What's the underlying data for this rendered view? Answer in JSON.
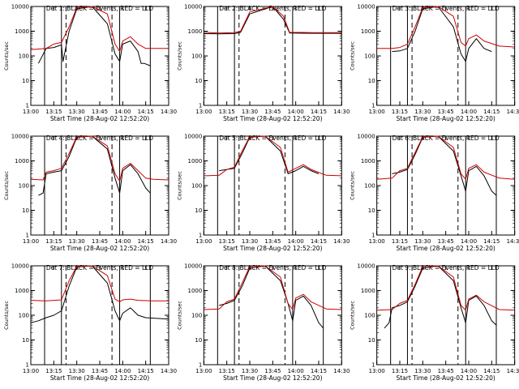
{
  "window": {
    "width": 640,
    "height": 480
  },
  "chart_data": [
    {
      "type": "line",
      "title": "Det 1: BLACK = Events, RED = LLD",
      "xlabel": "Start Time (28-Aug-02 12:52:20)",
      "ylabel": "Counts/sec",
      "x_ticks": [
        "13:00",
        "13:15",
        "13:30",
        "13:45",
        "14:00",
        "14:15",
        "14:30"
      ],
      "y_ticks": [
        "1",
        "10",
        "100",
        "1000",
        "10000"
      ],
      "ylim": [
        1,
        10000
      ],
      "yscale": "log",
      "solid_vlines": [
        "13:09",
        "13:20",
        "13:58",
        "14:18"
      ],
      "dashed_vlines": [
        "13:23",
        "13:53"
      ],
      "series": [
        {
          "name": "Events",
          "color": "#000000",
          "x": [
            "13:05",
            "13:10",
            "13:15",
            "13:20",
            "13:21",
            "13:25",
            "13:30",
            "13:40",
            "13:50",
            "13:55",
            "13:58",
            "14:00",
            "14:05",
            "14:10",
            "14:12",
            "14:14",
            "14:18"
          ],
          "y": [
            50,
            200,
            220,
            280,
            60,
            1000,
            8000,
            10000,
            2000,
            120,
            60,
            300,
            400,
            150,
            50,
            50,
            40
          ]
        },
        {
          "name": "LLD",
          "color": "#cc0000",
          "x": [
            "13:00",
            "13:10",
            "13:15",
            "13:20",
            "13:25",
            "13:30",
            "13:40",
            "13:50",
            "13:55",
            "13:58",
            "14:00",
            "14:05",
            "14:10",
            "14:15",
            "14:20",
            "14:30"
          ],
          "y": [
            180,
            200,
            300,
            350,
            1500,
            9000,
            10000,
            5000,
            300,
            150,
            400,
            600,
            300,
            200,
            200,
            200
          ]
        }
      ]
    },
    {
      "type": "line",
      "title": "Det 2: BLACK = Events, RED = LLD",
      "xlabel": "Start Time (28-Aug-02 12:52:20)",
      "ylabel": "Counts/sec",
      "x_ticks": [
        "13:00",
        "13:15",
        "13:30",
        "13:45",
        "14:00",
        "14:15",
        "14:30"
      ],
      "y_ticks": [
        "1",
        "10",
        "100",
        "1000",
        "10000"
      ],
      "ylim": [
        1,
        10000
      ],
      "yscale": "log",
      "solid_vlines": [
        "13:09",
        "13:20",
        "13:58",
        "14:18"
      ],
      "dashed_vlines": [
        "13:23",
        "13:53"
      ],
      "series": [
        {
          "name": "Events",
          "color": "#000000",
          "x": [
            "13:00",
            "13:10",
            "13:20",
            "13:24",
            "13:30",
            "13:45",
            "13:52",
            "13:56",
            "14:10",
            "14:30"
          ],
          "y": [
            800,
            780,
            800,
            900,
            5000,
            10000,
            3000,
            850,
            820,
            820
          ]
        },
        {
          "name": "LLD",
          "color": "#cc0000",
          "x": [
            "13:00",
            "13:10",
            "13:20",
            "13:24",
            "13:30",
            "13:45",
            "13:52",
            "13:56",
            "14:10",
            "14:30"
          ],
          "y": [
            900,
            850,
            880,
            1000,
            6000,
            10000,
            4000,
            900,
            880,
            880
          ]
        }
      ]
    },
    {
      "type": "line",
      "title": "Det 3: BLACK = Events, RED = LLD",
      "xlabel": "Start Time (28-Aug-02 12:52:20)",
      "ylabel": "Counts/sec",
      "x_ticks": [
        "13:00",
        "13:15",
        "13:30",
        "13:45",
        "14:00",
        "14:15",
        "14:30"
      ],
      "y_ticks": [
        "1",
        "10",
        "100",
        "1000",
        "10000"
      ],
      "ylim": [
        1,
        10000
      ],
      "yscale": "log",
      "solid_vlines": [
        "13:09",
        "13:20",
        "13:58",
        "14:18"
      ],
      "dashed_vlines": [
        "13:23",
        "13:53"
      ],
      "series": [
        {
          "name": "Events",
          "color": "#000000",
          "x": [
            "13:10",
            "13:15",
            "13:20",
            "13:25",
            "13:30",
            "13:40",
            "13:50",
            "13:55",
            "13:58",
            "14:00",
            "14:05",
            "14:10",
            "14:15"
          ],
          "y": [
            150,
            160,
            200,
            1000,
            8000,
            10000,
            1500,
            120,
            60,
            200,
            500,
            200,
            150
          ]
        },
        {
          "name": "LLD",
          "color": "#cc0000",
          "x": [
            "13:00",
            "13:10",
            "13:15",
            "13:20",
            "13:25",
            "13:30",
            "13:40",
            "13:50",
            "13:55",
            "13:58",
            "14:00",
            "14:05",
            "14:10",
            "14:20",
            "14:30"
          ],
          "y": [
            200,
            200,
            220,
            300,
            1500,
            9000,
            10000,
            4000,
            350,
            250,
            500,
            700,
            400,
            250,
            230
          ]
        }
      ]
    },
    {
      "type": "line",
      "title": "Det 4: BLACK = Events, RED = LLD",
      "xlabel": "Start Time (28-Aug-02 12:52:20)",
      "ylabel": "Counts/sec",
      "x_ticks": [
        "13:00",
        "13:15",
        "13:30",
        "13:45",
        "14:00",
        "14:15",
        "14:30"
      ],
      "y_ticks": [
        "1",
        "10",
        "100",
        "1000",
        "10000"
      ],
      "ylim": [
        1,
        10000
      ],
      "yscale": "log",
      "solid_vlines": [
        "13:09",
        "13:20",
        "13:58",
        "14:18"
      ],
      "dashed_vlines": [
        "13:23",
        "13:53"
      ],
      "series": [
        {
          "name": "Events",
          "color": "#000000",
          "x": [
            "13:05",
            "13:08",
            "13:10",
            "13:15",
            "13:20",
            "13:25",
            "13:30",
            "13:40",
            "13:50",
            "13:55",
            "13:58",
            "14:00",
            "14:05",
            "14:10",
            "14:15",
            "14:18"
          ],
          "y": [
            40,
            50,
            300,
            350,
            400,
            1500,
            9000,
            10000,
            3000,
            200,
            50,
            400,
            700,
            300,
            80,
            50
          ]
        },
        {
          "name": "LLD",
          "color": "#cc0000",
          "x": [
            "13:00",
            "13:08",
            "13:10",
            "13:15",
            "13:20",
            "13:25",
            "13:30",
            "13:40",
            "13:50",
            "13:55",
            "13:58",
            "14:00",
            "14:05",
            "14:10",
            "14:15",
            "14:20",
            "14:30"
          ],
          "y": [
            180,
            170,
            350,
            400,
            500,
            2000,
            9500,
            10000,
            4000,
            300,
            150,
            500,
            800,
            400,
            200,
            180,
            170
          ]
        }
      ]
    },
    {
      "type": "line",
      "title": "Det 5: BLACK = Events, RED = LLD",
      "xlabel": "Start Time (28-Aug-02 12:52:20)",
      "ylabel": "Counts/sec",
      "x_ticks": [
        "13:00",
        "13:15",
        "13:30",
        "13:45",
        "14:00",
        "14:15",
        "14:30"
      ],
      "y_ticks": [
        "1",
        "10",
        "100",
        "1000",
        "10000"
      ],
      "ylim": [
        1,
        10000
      ],
      "yscale": "log",
      "solid_vlines": [
        "13:09",
        "13:20",
        "13:58",
        "14:18"
      ],
      "dashed_vlines": [
        "13:23",
        "13:53"
      ],
      "series": [
        {
          "name": "Events",
          "color": "#000000",
          "x": [
            "13:10",
            "13:15",
            "13:20",
            "13:25",
            "13:30",
            "13:40",
            "13:50",
            "13:55",
            "14:00",
            "14:05",
            "14:10",
            "14:15"
          ],
          "y": [
            400,
            450,
            500,
            2000,
            9000,
            10000,
            2500,
            300,
            400,
            600,
            400,
            300
          ]
        },
        {
          "name": "LLD",
          "color": "#cc0000",
          "x": [
            "13:00",
            "13:10",
            "13:15",
            "13:20",
            "13:25",
            "13:30",
            "13:40",
            "13:50",
            "13:55",
            "14:00",
            "14:05",
            "14:10",
            "14:20",
            "14:30"
          ],
          "y": [
            250,
            260,
            450,
            550,
            2500,
            9500,
            10000,
            3500,
            350,
            500,
            700,
            450,
            260,
            250
          ]
        }
      ]
    },
    {
      "type": "line",
      "title": "Det 6: BLACK = Events, RED = LLD",
      "xlabel": "Start Time (28-Aug-02 12:52:20)",
      "ylabel": "Counts/sec",
      "x_ticks": [
        "13:00",
        "13:15",
        "13:30",
        "13:45",
        "14:00",
        "14:15",
        "14:30"
      ],
      "y_ticks": [
        "1",
        "10",
        "100",
        "1000",
        "10000"
      ],
      "ylim": [
        1,
        10000
      ],
      "yscale": "log",
      "solid_vlines": [
        "13:09",
        "13:20",
        "13:58",
        "14:18"
      ],
      "dashed_vlines": [
        "13:23",
        "13:53"
      ],
      "series": [
        {
          "name": "Events",
          "color": "#000000",
          "x": [
            "13:10",
            "13:15",
            "13:20",
            "13:25",
            "13:30",
            "13:40",
            "13:50",
            "13:55",
            "13:58",
            "14:00",
            "14:05",
            "14:10",
            "14:15",
            "14:18"
          ],
          "y": [
            300,
            350,
            450,
            1800,
            9000,
            10000,
            2500,
            250,
            60,
            400,
            600,
            250,
            60,
            40
          ]
        },
        {
          "name": "LLD",
          "color": "#cc0000",
          "x": [
            "13:00",
            "13:10",
            "13:15",
            "13:20",
            "13:25",
            "13:30",
            "13:40",
            "13:50",
            "13:55",
            "13:58",
            "14:00",
            "14:05",
            "14:10",
            "14:20",
            "14:30"
          ],
          "y": [
            180,
            200,
            400,
            500,
            2200,
            9500,
            10000,
            3500,
            300,
            180,
            500,
            700,
            350,
            200,
            180
          ]
        }
      ]
    },
    {
      "type": "line",
      "title": "Det 7: BLACK = Events, RED = LLD",
      "xlabel": "Start Time (28-Aug-02 12:52:20)",
      "ylabel": "Counts/sec",
      "x_ticks": [
        "13:00",
        "13:15",
        "13:30",
        "13:45",
        "14:00",
        "14:15",
        "14:30"
      ],
      "y_ticks": [
        "1",
        "10",
        "100",
        "1000",
        "10000"
      ],
      "ylim": [
        1,
        10000
      ],
      "yscale": "log",
      "solid_vlines": [
        "13:09",
        "13:20",
        "13:58",
        "14:18"
      ],
      "dashed_vlines": [
        "13:23",
        "13:53"
      ],
      "series": [
        {
          "name": "Events",
          "color": "#000000",
          "x": [
            "13:00",
            "13:05",
            "13:10",
            "13:15",
            "13:20",
            "13:25",
            "13:30",
            "13:40",
            "13:50",
            "13:55",
            "13:58",
            "14:00",
            "14:05",
            "14:10",
            "14:15",
            "14:30"
          ],
          "y": [
            50,
            60,
            80,
            100,
            150,
            1500,
            9000,
            10000,
            2000,
            150,
            60,
            120,
            200,
            100,
            80,
            70
          ]
        },
        {
          "name": "LLD",
          "color": "#cc0000",
          "x": [
            "13:00",
            "13:10",
            "13:15",
            "13:20",
            "13:25",
            "13:30",
            "13:40",
            "13:50",
            "13:55",
            "13:58",
            "14:00",
            "14:05",
            "14:10",
            "14:20",
            "14:30"
          ],
          "y": [
            400,
            380,
            400,
            420,
            2500,
            9500,
            10000,
            4000,
            450,
            350,
            420,
            450,
            400,
            380,
            380
          ]
        }
      ]
    },
    {
      "type": "line",
      "title": "Det 8: BLACK = Events, RED = LLD",
      "xlabel": "Start Time (28-Aug-02 12:52:20)",
      "ylabel": "Counts/sec",
      "x_ticks": [
        "13:00",
        "13:15",
        "13:30",
        "13:45",
        "14:00",
        "14:15",
        "14:30"
      ],
      "y_ticks": [
        "1",
        "10",
        "100",
        "1000",
        "10000"
      ],
      "ylim": [
        1,
        10000
      ],
      "yscale": "log",
      "solid_vlines": [
        "13:09",
        "13:20",
        "13:58",
        "14:18"
      ],
      "dashed_vlines": [
        "13:23",
        "13:53"
      ],
      "series": [
        {
          "name": "Events",
          "color": "#000000",
          "x": [
            "13:10",
            "13:15",
            "13:20",
            "13:25",
            "13:30",
            "13:40",
            "13:50",
            "13:55",
            "13:58",
            "14:00",
            "14:05",
            "14:10",
            "14:15",
            "14:18"
          ],
          "y": [
            250,
            300,
            400,
            1500,
            8000,
            10000,
            2500,
            300,
            60,
            400,
            600,
            250,
            50,
            30
          ]
        },
        {
          "name": "LLD",
          "color": "#cc0000",
          "x": [
            "13:00",
            "13:10",
            "13:15",
            "13:20",
            "13:25",
            "13:30",
            "13:40",
            "13:50",
            "13:55",
            "13:58",
            "14:00",
            "14:05",
            "14:10",
            "14:20",
            "14:30"
          ],
          "y": [
            170,
            180,
            350,
            450,
            2000,
            9500,
            10000,
            3500,
            300,
            170,
            500,
            700,
            350,
            180,
            170
          ]
        }
      ]
    },
    {
      "type": "line",
      "title": "Det 9: BLACK = Events, RED = LLD",
      "xlabel": "Start Time (28-Aug-02 12:52:20)",
      "ylabel": "Counts/sec",
      "x_ticks": [
        "13:00",
        "13:15",
        "13:30",
        "13:45",
        "14:00",
        "14:15",
        "14:30"
      ],
      "y_ticks": [
        "1",
        "10",
        "100",
        "1000",
        "10000"
      ],
      "ylim": [
        1,
        10000
      ],
      "yscale": "log",
      "solid_vlines": [
        "13:09",
        "13:20",
        "13:58",
        "14:18"
      ],
      "dashed_vlines": [
        "13:23",
        "13:53"
      ],
      "series": [
        {
          "name": "Events",
          "color": "#000000",
          "x": [
            "13:05",
            "13:08",
            "13:10",
            "13:15",
            "13:20",
            "13:25",
            "13:30",
            "13:40",
            "13:50",
            "13:55",
            "13:58",
            "14:00",
            "14:05",
            "14:10",
            "14:15",
            "14:18"
          ],
          "y": [
            30,
            50,
            200,
            250,
            350,
            1500,
            8000,
            10000,
            2500,
            200,
            50,
            400,
            600,
            250,
            60,
            40
          ]
        },
        {
          "name": "LLD",
          "color": "#cc0000",
          "x": [
            "13:00",
            "13:10",
            "13:15",
            "13:20",
            "13:25",
            "13:30",
            "13:40",
            "13:50",
            "13:55",
            "13:58",
            "14:00",
            "14:05",
            "14:10",
            "14:20",
            "14:30"
          ],
          "y": [
            160,
            170,
            300,
            400,
            1800,
            9500,
            10000,
            3500,
            250,
            160,
            450,
            650,
            350,
            170,
            160
          ]
        }
      ]
    }
  ]
}
